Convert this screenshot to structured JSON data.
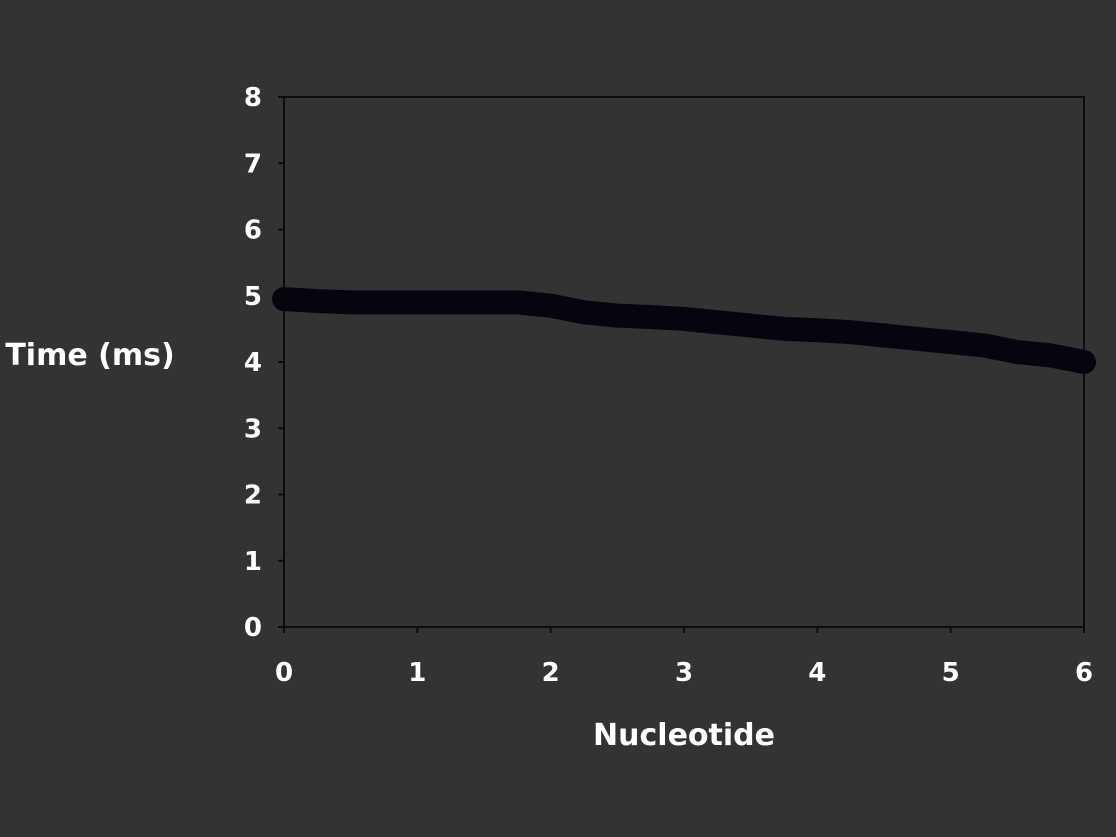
{
  "chart_data": {
    "type": "line",
    "title": "",
    "xlabel": "Nucleotide",
    "ylabel": "Time (ms)",
    "xlim": [
      0,
      6
    ],
    "ylim": [
      0,
      8
    ],
    "x_ticks": [
      "0",
      "1",
      "2",
      "3",
      "4",
      "5",
      "6"
    ],
    "y_ticks": [
      "0",
      "1",
      "2",
      "3",
      "4",
      "5",
      "6",
      "7",
      "8"
    ],
    "grid": false,
    "legend": "none",
    "series": [
      {
        "color": "#05050f",
        "x": [
          0,
          0.25,
          0.5,
          0.75,
          1.0,
          1.25,
          1.5,
          1.75,
          2.0,
          2.25,
          2.5,
          2.75,
          3.0,
          3.25,
          3.5,
          3.75,
          4.0,
          4.25,
          4.5,
          4.75,
          5.0,
          5.25,
          5.5,
          5.75,
          6.0
        ],
        "y": [
          4.95,
          4.92,
          4.9,
          4.9,
          4.9,
          4.9,
          4.9,
          4.9,
          4.85,
          4.75,
          4.7,
          4.68,
          4.65,
          4.6,
          4.55,
          4.5,
          4.48,
          4.45,
          4.4,
          4.35,
          4.3,
          4.25,
          4.15,
          4.1,
          4.0
        ]
      }
    ]
  }
}
